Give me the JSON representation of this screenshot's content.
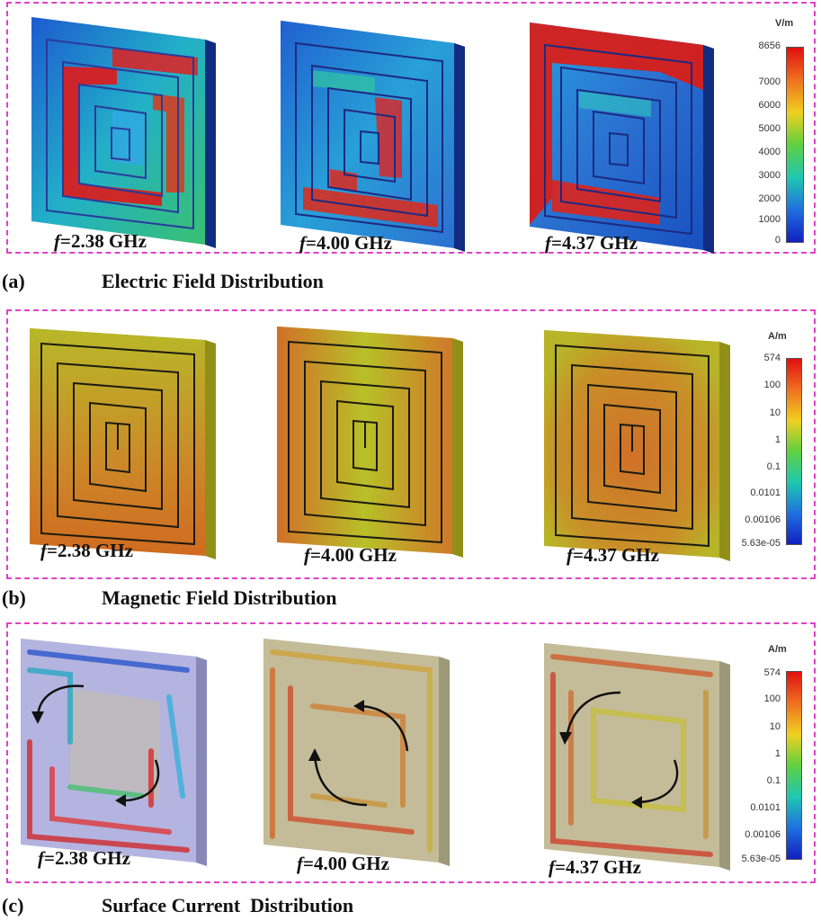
{
  "panels": [
    {
      "label": "(a)",
      "title": "Electric Field Distribution",
      "unit": "V/m",
      "ticks": [
        "8656",
        "7000",
        "6000",
        "5000",
        "4000",
        "3000",
        "2000",
        "1000",
        "0"
      ],
      "frequencies": [
        "=2.38 GHz",
        "=4.00 GHz",
        "=4.37 GHz"
      ]
    },
    {
      "label": "(b)",
      "title": "Magnetic Field Distribution",
      "unit": "A/m",
      "ticks": [
        "574",
        "100",
        "10",
        "1",
        "0.1",
        "0.0101",
        "0.00106",
        "5.63e-05"
      ],
      "frequencies": [
        "=2.38 GHz",
        "=4.00 GHz",
        "=4.37 GHz"
      ]
    },
    {
      "label": "(c)",
      "title": "Surface Current  Distribution",
      "unit": "A/m",
      "ticks": [
        "574",
        "100",
        "10",
        "1",
        "0.1",
        "0.0101",
        "0.00106",
        "5.63e-05"
      ],
      "frequencies": [
        "=2.38 GHz",
        "=4.00 GHz",
        "=4.37 GHz"
      ]
    }
  ],
  "freq_symbol": "f",
  "colors": {
    "border": "#e040c8",
    "efield_low": "#1030b0",
    "efield_high": "#e01010",
    "hfield_base": "#c8b428",
    "hfield_hot": "#d46a20",
    "current_bg": "#b4b4e0"
  }
}
